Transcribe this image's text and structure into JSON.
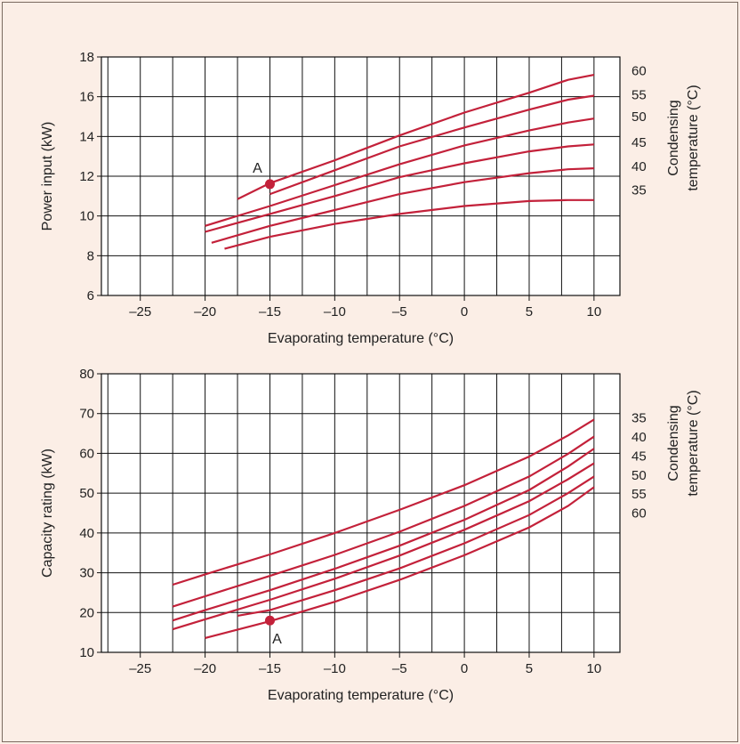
{
  "chart_data": [
    {
      "type": "line",
      "xlabel": "Evaporating temperature (°C)",
      "ylabel": "Power input (kW)",
      "right_label": [
        "Condensing",
        "temperature (°C)"
      ],
      "xlim": [
        -28,
        12
      ],
      "ylim": [
        6,
        18
      ],
      "x_ticks": [
        -25,
        -20,
        -15,
        -10,
        -5,
        0,
        5,
        10
      ],
      "x_tick_labels": [
        "–25",
        "–20",
        "–15",
        "–10",
        "–5",
        "0",
        "5",
        "10"
      ],
      "y_ticks": [
        6,
        8,
        10,
        12,
        14,
        16,
        18
      ],
      "grid": true,
      "series": [
        {
          "name": "60",
          "points": [
            [
              -17.5,
              10.85
            ],
            [
              -15,
              11.65
            ],
            [
              -10,
              12.8
            ],
            [
              -5,
              14.05
            ],
            [
              0,
              15.2
            ],
            [
              5,
              16.2
            ],
            [
              8,
              16.85
            ],
            [
              10,
              17.1
            ]
          ]
        },
        {
          "name": "55",
          "points": [
            [
              -15,
              11.1
            ],
            [
              -10,
              12.3
            ],
            [
              -5,
              13.5
            ],
            [
              0,
              14.45
            ],
            [
              5,
              15.35
            ],
            [
              8,
              15.85
            ],
            [
              10,
              16.05
            ]
          ]
        },
        {
          "name": "50",
          "points": [
            [
              -20,
              9.5
            ],
            [
              -15,
              10.5
            ],
            [
              -10,
              11.55
            ],
            [
              -5,
              12.6
            ],
            [
              0,
              13.55
            ],
            [
              5,
              14.3
            ],
            [
              8,
              14.7
            ],
            [
              10,
              14.9
            ]
          ]
        },
        {
          "name": "45",
          "points": [
            [
              -20,
              9.2
            ],
            [
              -15,
              10.1
            ],
            [
              -10,
              11.0
            ],
            [
              -5,
              11.95
            ],
            [
              0,
              12.65
            ],
            [
              5,
              13.25
            ],
            [
              8,
              13.5
            ],
            [
              10,
              13.6
            ]
          ]
        },
        {
          "name": "40",
          "points": [
            [
              -19.5,
              8.65
            ],
            [
              -15,
              9.5
            ],
            [
              -10,
              10.3
            ],
            [
              -5,
              11.1
            ],
            [
              0,
              11.7
            ],
            [
              5,
              12.15
            ],
            [
              8,
              12.35
            ],
            [
              10,
              12.4
            ]
          ]
        },
        {
          "name": "35",
          "points": [
            [
              -18.5,
              8.35
            ],
            [
              -15,
              8.95
            ],
            [
              -10,
              9.6
            ],
            [
              -5,
              10.1
            ],
            [
              0,
              10.5
            ],
            [
              5,
              10.75
            ],
            [
              8,
              10.8
            ],
            [
              10,
              10.8
            ]
          ]
        }
      ],
      "right_tick_labels": [
        "60",
        "55",
        "50",
        "45",
        "40",
        "35"
      ],
      "right_tick_y": [
        17.3,
        16.1,
        15.0,
        13.7,
        12.5,
        11.3
      ],
      "annotation": {
        "label": "A",
        "x": -15,
        "y": 11.6
      }
    },
    {
      "type": "line",
      "xlabel": "Evaporating temperature (°C)",
      "ylabel": "Capacity rating (kW)",
      "right_label": [
        "Condensing",
        "temperature (°C)"
      ],
      "xlim": [
        -28,
        12
      ],
      "ylim": [
        10,
        80
      ],
      "x_ticks": [
        -25,
        -20,
        -15,
        -10,
        -5,
        0,
        5,
        10
      ],
      "x_tick_labels": [
        "–25",
        "–20",
        "–15",
        "–10",
        "–5",
        "0",
        "5",
        "10"
      ],
      "y_ticks": [
        10,
        20,
        30,
        40,
        50,
        60,
        70,
        80
      ],
      "grid": true,
      "series": [
        {
          "name": "35",
          "points": [
            [
              -22.5,
              27.0
            ],
            [
              -20,
              29.6
            ],
            [
              -15,
              34.6
            ],
            [
              -10,
              40.0
            ],
            [
              -5,
              45.8
            ],
            [
              0,
              52.0
            ],
            [
              5,
              59.2
            ],
            [
              8,
              64.5
            ],
            [
              10,
              68.5
            ]
          ]
        },
        {
          "name": "40",
          "points": [
            [
              -22.5,
              21.5
            ],
            [
              -20,
              24.1
            ],
            [
              -15,
              29.2
            ],
            [
              -10,
              34.5
            ],
            [
              -5,
              40.3
            ],
            [
              0,
              46.8
            ],
            [
              5,
              54.2
            ],
            [
              8,
              59.9
            ],
            [
              10,
              64.2
            ]
          ]
        },
        {
          "name": "45",
          "points": [
            [
              -22.5,
              18.0
            ],
            [
              -20,
              20.6
            ],
            [
              -15,
              25.6
            ],
            [
              -10,
              31.0
            ],
            [
              -5,
              36.8
            ],
            [
              0,
              43.3
            ],
            [
              5,
              50.8
            ],
            [
              8,
              56.7
            ],
            [
              10,
              61.2
            ]
          ]
        },
        {
          "name": "50",
          "points": [
            [
              -22.5,
              15.8
            ],
            [
              -20,
              18.3
            ],
            [
              -15,
              23.2
            ],
            [
              -10,
              28.5
            ],
            [
              -5,
              34.3
            ],
            [
              0,
              40.8
            ],
            [
              5,
              48.0
            ],
            [
              8,
              53.5
            ],
            [
              10,
              57.5
            ]
          ]
        },
        {
          "name": "55",
          "points": [
            [
              -17.5,
              19.2
            ],
            [
              -15,
              20.6
            ],
            [
              -10,
              25.6
            ],
            [
              -5,
              31.1
            ],
            [
              0,
              37.4
            ],
            [
              5,
              44.5
            ],
            [
              8,
              50.0
            ],
            [
              10,
              54.2
            ]
          ]
        },
        {
          "name": "60",
          "points": [
            [
              -20,
              13.6
            ],
            [
              -15,
              17.8
            ],
            [
              -10,
              22.7
            ],
            [
              -5,
              28.2
            ],
            [
              0,
              34.4
            ],
            [
              5,
              41.4
            ],
            [
              8,
              46.8
            ],
            [
              10,
              51.5
            ]
          ]
        }
      ],
      "right_tick_labels": [
        "35",
        "40",
        "45",
        "50",
        "55",
        "60"
      ],
      "right_tick_y": [
        68.9,
        64.1,
        59.3,
        54.5,
        49.8,
        45.0
      ],
      "annotation": {
        "label": "A",
        "x": -15,
        "y": 18.0
      }
    }
  ]
}
